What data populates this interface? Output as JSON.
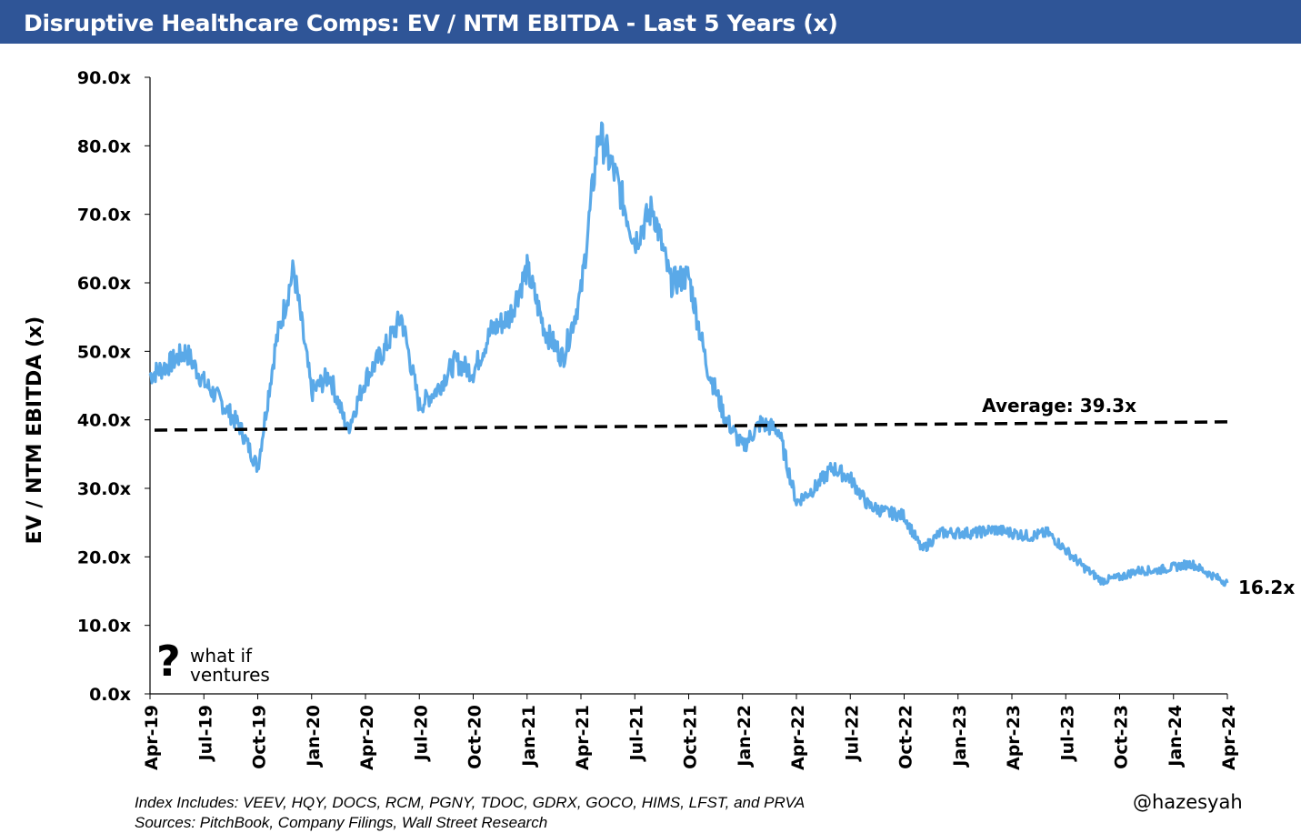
{
  "header": {
    "title": "Disruptive Healthcare Comps: EV / NTM EBITDA - Last 5 Years (x)"
  },
  "chart_data": {
    "type": "line",
    "ylabel": "EV / NTM EBITDA (x)",
    "ylim": [
      0,
      90
    ],
    "y_ticks": [
      "0.0x",
      "10.0x",
      "20.0x",
      "30.0x",
      "40.0x",
      "50.0x",
      "60.0x",
      "70.0x",
      "80.0x",
      "90.0x"
    ],
    "x_ticks": [
      "Apr-19",
      "Jul-19",
      "Oct-19",
      "Jan-20",
      "Apr-20",
      "Jul-20",
      "Oct-20",
      "Jan-21",
      "Apr-21",
      "Jul-21",
      "Oct-21",
      "Jan-22",
      "Apr-22",
      "Jul-22",
      "Oct-22",
      "Jan-23",
      "Apr-23",
      "Jul-23",
      "Oct-23",
      "Jan-24",
      "Apr-24"
    ],
    "grid": false,
    "colors": {
      "series": "#5aa9e8",
      "average": "#000000"
    },
    "series": [
      {
        "x": [
          "2019-04",
          "2019-05",
          "2019-06",
          "2019-07",
          "2019-08",
          "2019-09",
          "2019-10",
          "2019-11",
          "2019-12",
          "2020-01",
          "2020-02",
          "2020-03",
          "2020-04",
          "2020-05",
          "2020-06",
          "2020-07",
          "2020-08",
          "2020-09",
          "2020-10",
          "2020-11",
          "2020-12",
          "2021-01",
          "2021-02",
          "2021-03",
          "2021-04",
          "2021-05",
          "2021-06",
          "2021-07",
          "2021-08",
          "2021-09",
          "2021-10",
          "2021-11",
          "2021-12",
          "2022-01",
          "2022-02",
          "2022-03",
          "2022-04",
          "2022-05",
          "2022-06",
          "2022-07",
          "2022-08",
          "2022-09",
          "2022-10",
          "2022-11",
          "2022-12",
          "2023-01",
          "2023-02",
          "2023-03",
          "2023-04",
          "2023-05",
          "2023-06",
          "2023-07",
          "2023-08",
          "2023-09",
          "2023-10",
          "2023-11",
          "2023-12",
          "2024-01",
          "2024-02",
          "2024-03",
          "2024-04"
        ],
        "values": [
          46.5,
          48.0,
          50.0,
          45.5,
          42.5,
          39.0,
          33.0,
          51.0,
          62.0,
          44.0,
          46.5,
          38.5,
          46.0,
          50.0,
          55.0,
          42.0,
          44.5,
          48.5,
          47.0,
          53.0,
          55.0,
          62.0,
          53.0,
          49.0,
          58.5,
          82.0,
          75.0,
          66.0,
          71.0,
          60.0,
          61.0,
          48.0,
          40.5,
          36.0,
          39.5,
          38.5,
          28.0,
          30.0,
          33.0,
          31.5,
          27.5,
          26.5,
          26.0,
          21.0,
          23.5,
          23.5,
          23.5,
          24.0,
          23.5,
          23.0,
          23.5,
          21.0,
          18.5,
          16.5,
          17.0,
          18.0,
          18.0,
          18.5,
          19.0,
          17.5,
          16.2
        ]
      }
    ],
    "average": {
      "value": 39.3,
      "label": "Average: 39.3x"
    },
    "last_label": "16.2x"
  },
  "footer": {
    "note1": "Index Includes: VEEV, HQY, DOCS, RCM, PGNY, TDOC, GDRX, GOCO, HIMS, LFST, and PRVA",
    "note2": "Sources: PitchBook, Company Filings, Wall Street Research",
    "handle": "@hazesyah"
  },
  "logo": {
    "line1": "what if",
    "line2": "ventures",
    "icon": "question-mark-icon"
  }
}
